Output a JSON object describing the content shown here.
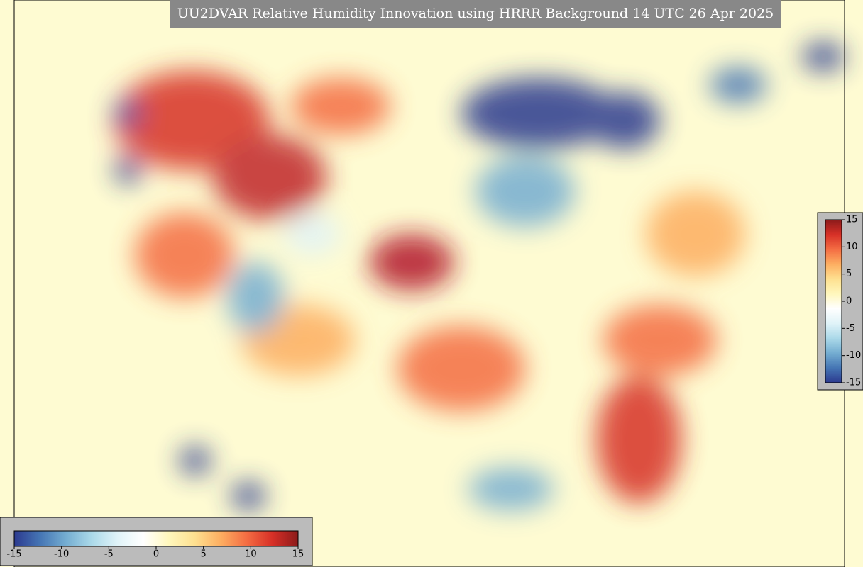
{
  "title": "UU2DVAR Relative Humidity Innovation using HRRR Background 14 UTC 26 Apr 2025",
  "colorbar": {
    "range": [
      -15,
      15
    ],
    "ticks": [
      -15,
      -10,
      -5,
      0,
      5,
      10,
      15
    ],
    "colors": [
      "#2c3a8f",
      "#4575b4",
      "#74add1",
      "#abd9e9",
      "#e0f3f8",
      "#ffffff",
      "#fff7bc",
      "#fee090",
      "#fdae61",
      "#f46d43",
      "#d73027",
      "#8b1a1a"
    ]
  }
}
